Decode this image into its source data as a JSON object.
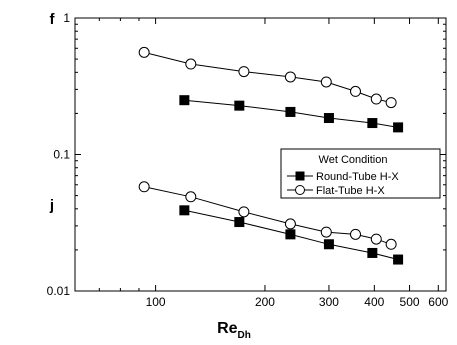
{
  "chart_data": {
    "type": "scatter",
    "title": "",
    "xlabel": {
      "main": "Re",
      "sub": "Dh"
    },
    "ylabel_left": "j",
    "ylabel_right": "f",
    "x_scale": "log",
    "y_scale": "log",
    "xlim": [
      60,
      630
    ],
    "ylim": [
      0.01,
      1
    ],
    "x_tick_labels": [
      "100",
      "200",
      "300",
      "400",
      "500",
      "600"
    ],
    "y_tick_labels": [
      "0.01",
      "0.1",
      "1"
    ],
    "legend": {
      "title": "Wet Condition",
      "position": "center-right",
      "entries": [
        "Round-Tube H-X",
        "Flat-Tube H-X"
      ]
    },
    "series": [
      {
        "name": "Round-Tube H-X",
        "quantity": "f",
        "marker": "filled-square",
        "color": "#000000",
        "x": [
          120,
          170,
          235,
          300,
          395,
          465
        ],
        "y": [
          0.25,
          0.228,
          0.205,
          0.185,
          0.17,
          0.158
        ]
      },
      {
        "name": "Flat-Tube H-X",
        "quantity": "f",
        "marker": "open-circle",
        "color": "#000000",
        "x": [
          93,
          125,
          175,
          235,
          295,
          355,
          405,
          445
        ],
        "y": [
          0.56,
          0.46,
          0.405,
          0.37,
          0.34,
          0.29,
          0.255,
          0.24
        ]
      },
      {
        "name": "Round-Tube H-X",
        "quantity": "j",
        "marker": "filled-square",
        "color": "#000000",
        "x": [
          120,
          170,
          235,
          300,
          395,
          465
        ],
        "y": [
          0.039,
          0.032,
          0.026,
          0.022,
          0.019,
          0.017
        ]
      },
      {
        "name": "Flat-Tube H-X",
        "quantity": "j",
        "marker": "open-circle",
        "color": "#000000",
        "x": [
          93,
          125,
          175,
          235,
          295,
          355,
          405,
          445
        ],
        "y": [
          0.058,
          0.049,
          0.038,
          0.031,
          0.027,
          0.026,
          0.024,
          0.022
        ]
      }
    ]
  }
}
